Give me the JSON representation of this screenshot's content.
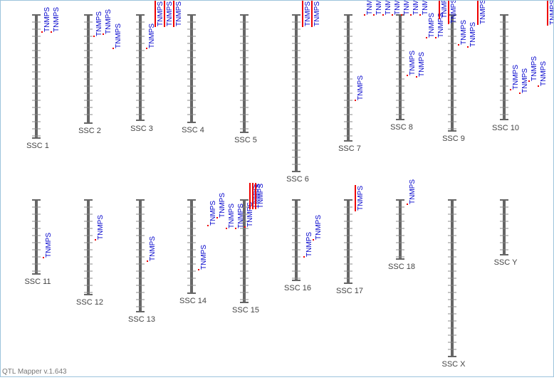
{
  "chromosomes": [
    {
      "name": "SSC 1",
      "qtls": [
        "TNMPS",
        "TNMPS"
      ]
    },
    {
      "name": "SSC 2",
      "qtls": [
        "TNMPS",
        "TNMPS",
        "TNMPS"
      ]
    },
    {
      "name": "SSC 3",
      "qtls": [
        "TNMPS",
        "TNMPS",
        "TNMPS",
        "TNMPS"
      ]
    },
    {
      "name": "SSC 4",
      "qtls": []
    },
    {
      "name": "SSC 5",
      "qtls": []
    },
    {
      "name": "SSC 6",
      "qtls": [
        "TNMPS",
        "TNMPS"
      ]
    },
    {
      "name": "SSC 7",
      "qtls": [
        "TNMPS",
        "TNMPS",
        "TNMPS",
        "TNMPS",
        "TNMPS"
      ]
    },
    {
      "name": "SSC 8",
      "qtls": [
        "TNMPS",
        "TNMPS",
        "TNMPS",
        "TNMPS",
        "TNMPS",
        "TNMPS",
        "TNMPS",
        "TNMPS"
      ]
    },
    {
      "name": "SSC 9",
      "qtls": [
        "TNMPS",
        "TNMPS",
        "TNMPS",
        "TNMPS"
      ]
    },
    {
      "name": "SSC 10",
      "qtls": [
        "TNMPS",
        "TNMPS",
        "TNMPS",
        "TNMPS",
        "TNMPS"
      ]
    },
    {
      "name": "SSC 11",
      "qtls": [
        "TNMPS"
      ]
    },
    {
      "name": "SSC 12",
      "qtls": [
        "TNMPS"
      ]
    },
    {
      "name": "SSC 13",
      "qtls": [
        "TNMPS"
      ]
    },
    {
      "name": "SSC 14",
      "qtls": [
        "TNMPS",
        "TNMPS",
        "TNMPS",
        "TNMPS"
      ]
    },
    {
      "name": "SSC 15",
      "qtls": [
        "TNMPS",
        "TNMPS",
        "TNMPS",
        "TNMPS",
        "TNMPS"
      ]
    },
    {
      "name": "SSC 16",
      "qtls": [
        "TNMPS",
        "TNMPS"
      ]
    },
    {
      "name": "SSC 17",
      "qtls": [
        "TNMPS"
      ]
    },
    {
      "name": "SSC 18",
      "qtls": [
        "TNMPS"
      ]
    },
    {
      "name": "SSC X",
      "qtls": []
    },
    {
      "name": "SSC Y",
      "qtls": []
    }
  ],
  "footer": "QTL Mapper v.1.643"
}
